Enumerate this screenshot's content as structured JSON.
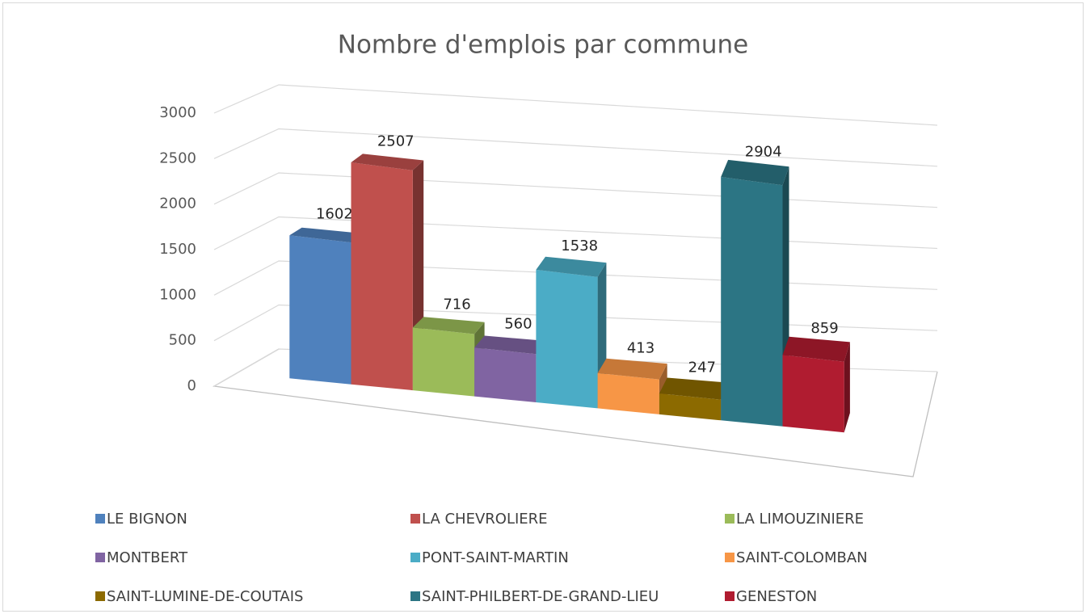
{
  "chart_data": {
    "type": "bar",
    "title": "Nombre d'emplois par commune",
    "categories": [
      "LE BIGNON",
      "LA CHEVROLIERE",
      "LA LIMOUZINIERE",
      "MONTBERT",
      "PONT-SAINT-MARTIN",
      "SAINT-COLOMBAN",
      "SAINT-LUMINE-DE-COUTAIS",
      "SAINT-PHILBERT-DE-GRAND-LIEU",
      "GENESTON"
    ],
    "values": [
      1602,
      2507,
      716,
      560,
      1538,
      413,
      247,
      2904,
      859
    ],
    "colors": [
      "#4f81bd",
      "#c0504d",
      "#9bbb59",
      "#8064a2",
      "#4bacc6",
      "#f79646",
      "#8c6a00",
      "#2c7584",
      "#b01c30"
    ],
    "ylim": [
      0,
      3000
    ],
    "yticks": [
      0,
      500,
      1000,
      1500,
      2000,
      2500,
      3000
    ],
    "grid": true,
    "legend": "bottom"
  }
}
